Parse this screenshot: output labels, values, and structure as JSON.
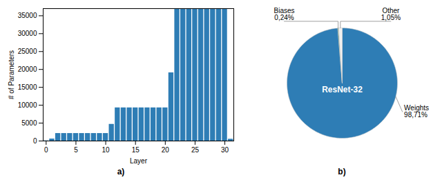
{
  "chart_data": [
    {
      "type": "bar",
      "title": "a)",
      "x": [
        0,
        1,
        2,
        3,
        4,
        5,
        6,
        7,
        8,
        9,
        10,
        11,
        12,
        13,
        14,
        15,
        16,
        17,
        18,
        19,
        20,
        21,
        22,
        23,
        24,
        25,
        26,
        27,
        28,
        29,
        30,
        31
      ],
      "values": [
        64,
        576,
        2112,
        2112,
        2112,
        2112,
        2112,
        2112,
        2112,
        2112,
        2112,
        4672,
        9280,
        9280,
        9280,
        9280,
        9280,
        9280,
        9280,
        9280,
        9280,
        19072,
        36928,
        36928,
        36928,
        36928,
        36928,
        36928,
        36928,
        36928,
        36928,
        512
      ],
      "color": "#2e7db5",
      "xlabel": "Layer",
      "ylabel": "# of Parameters",
      "xlim": [
        -0.5,
        31.5
      ],
      "ylim": [
        0,
        37000
      ],
      "xticks": [
        0,
        5,
        10,
        15,
        20,
        25,
        30
      ],
      "yticks": [
        0,
        5000,
        10000,
        15000,
        20000,
        25000,
        30000,
        35000
      ]
    },
    {
      "type": "pie",
      "title": "b)",
      "categories": [
        "Weights",
        "Biases",
        "Other"
      ],
      "values": [
        98.71,
        0.24,
        1.05
      ],
      "value_labels": [
        "98,71%",
        "0,24%",
        "1,05%"
      ],
      "colors": [
        "#2e7db5",
        "#3a7a3a",
        "#f0f0f0"
      ],
      "data_labels": true,
      "annotations": [
        {
          "text": "ResNet-32"
        }
      ]
    }
  ]
}
